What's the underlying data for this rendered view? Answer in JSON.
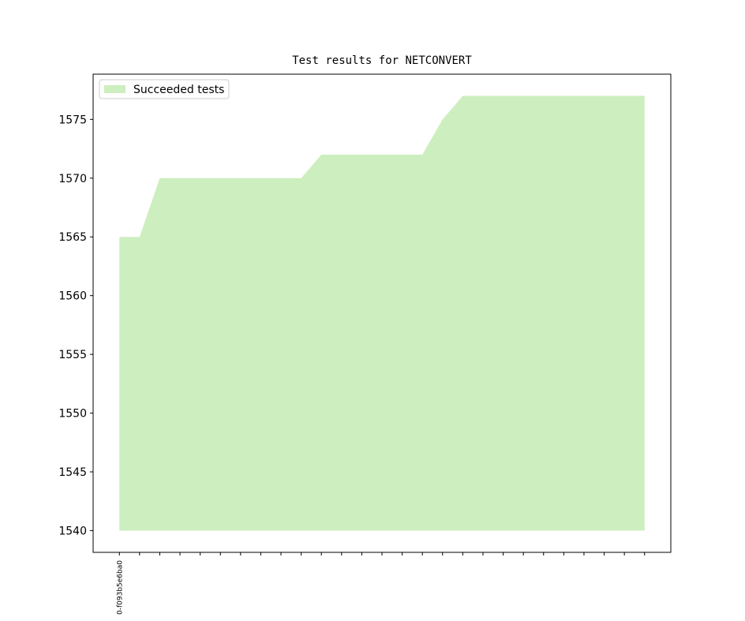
{
  "chart_data": {
    "type": "area",
    "title": "Test results for NETCONVERT",
    "categories": [
      "0-f093b5e6ba0",
      null,
      null,
      null,
      null,
      null,
      null,
      null,
      null,
      null,
      null,
      null,
      null,
      null,
      null,
      null,
      null,
      null,
      null,
      null,
      null,
      null,
      null,
      null,
      null,
      null,
      null
    ],
    "series": [
      {
        "name": "Succeeded tests",
        "color": "#cdeebf",
        "values": [
          1565,
          1565,
          1570,
          1570,
          1570,
          1570,
          1570,
          1570,
          1570,
          1570,
          1572,
          1572,
          1572,
          1572,
          1572,
          1572,
          1575,
          1577,
          1577,
          1577,
          1577,
          1577,
          1577,
          1577,
          1577,
          1577,
          1577
        ]
      }
    ],
    "baseline": 1540,
    "xlim": [
      -1.3,
      27.3
    ],
    "ylim": [
      1538.15,
      1578.85
    ],
    "yticks": [
      1540,
      1545,
      1550,
      1555,
      1560,
      1565,
      1570,
      1575
    ],
    "legend": "upper left"
  }
}
